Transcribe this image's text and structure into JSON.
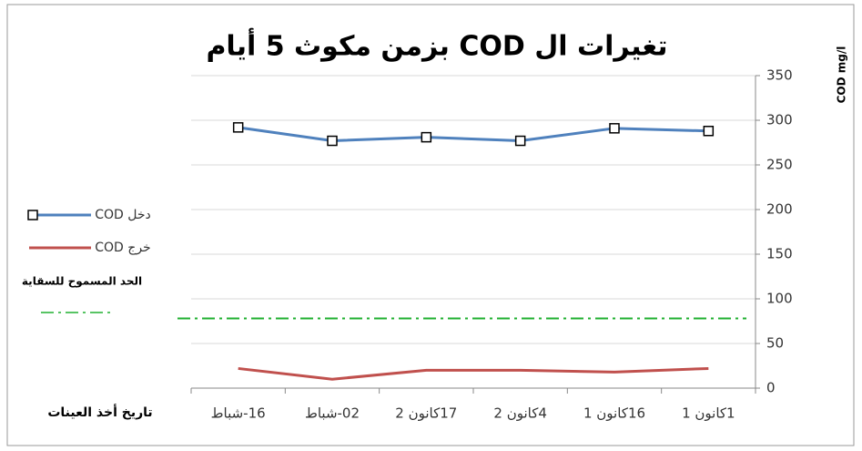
{
  "chart_data": {
    "type": "line",
    "title": "تغيرات ال COD بزمن مكوث 5 أيام",
    "y_label": "COD mg/l",
    "x_label": "تاريخ أخذ العينات",
    "categories": [
      "1كانون 1",
      "16كانون 1",
      "4كانون 2",
      "17كانون 2",
      "02-شباط",
      "16-شباط"
    ],
    "series": [
      {
        "name": "دخل COD",
        "color": "#4f81bd",
        "values": [
          288,
          291,
          277,
          281,
          277,
          292
        ]
      },
      {
        "name": "خرج COD",
        "color": "#c0504d",
        "values": [
          22,
          18,
          20,
          20,
          10,
          22
        ]
      }
    ],
    "limit": {
      "label": "الحد المسموح للسقاية",
      "value": 78,
      "color": "#20b030"
    },
    "ylim": [
      0,
      350
    ],
    "yticks": [
      0,
      50,
      100,
      150,
      200,
      250,
      300,
      350
    ],
    "grid": true,
    "x_reversed": true,
    "legend": "left"
  }
}
